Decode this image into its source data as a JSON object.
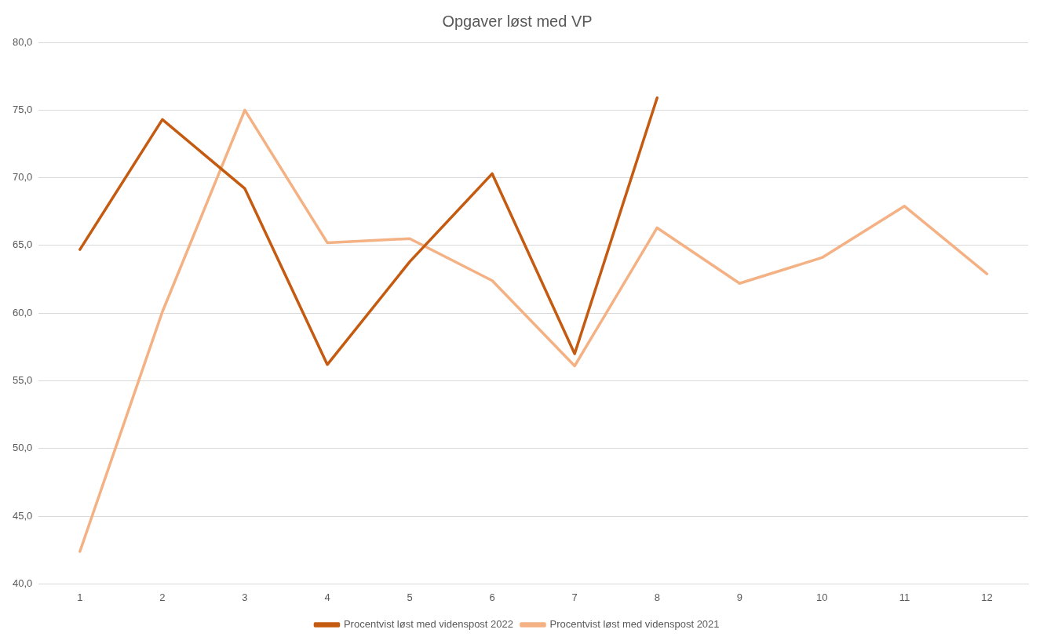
{
  "chart_data": {
    "type": "line",
    "title": "Opgaver løst med VP",
    "categories": [
      "1",
      "2",
      "3",
      "4",
      "5",
      "6",
      "7",
      "8",
      "9",
      "10",
      "11",
      "12"
    ],
    "series": [
      {
        "name": "Procentvist løst med videnspost 2022",
        "color": "#c55a11",
        "values": [
          64.7,
          74.3,
          69.2,
          56.2,
          63.8,
          70.3,
          57.0,
          75.9,
          null,
          null,
          null,
          null
        ]
      },
      {
        "name": "Procentvist løst med videnspost 2021",
        "color": "#f4b183",
        "values": [
          42.4,
          60.1,
          75.0,
          65.2,
          65.5,
          62.4,
          56.1,
          66.3,
          62.2,
          64.1,
          67.9,
          62.9
        ]
      }
    ],
    "ylim": [
      40,
      80
    ],
    "yticks": [
      {
        "value": 40,
        "label": "40,0"
      },
      {
        "value": 45,
        "label": "45,0"
      },
      {
        "value": 50,
        "label": "50,0"
      },
      {
        "value": 55,
        "label": "55,0"
      },
      {
        "value": 60,
        "label": "60,0"
      },
      {
        "value": 65,
        "label": "65,0"
      },
      {
        "value": 70,
        "label": "70,0"
      },
      {
        "value": 75,
        "label": "75,0"
      },
      {
        "value": 80,
        "label": "80,0"
      }
    ],
    "grid": "y",
    "legend": "bottom",
    "marker": "none",
    "line_style": "solid"
  }
}
